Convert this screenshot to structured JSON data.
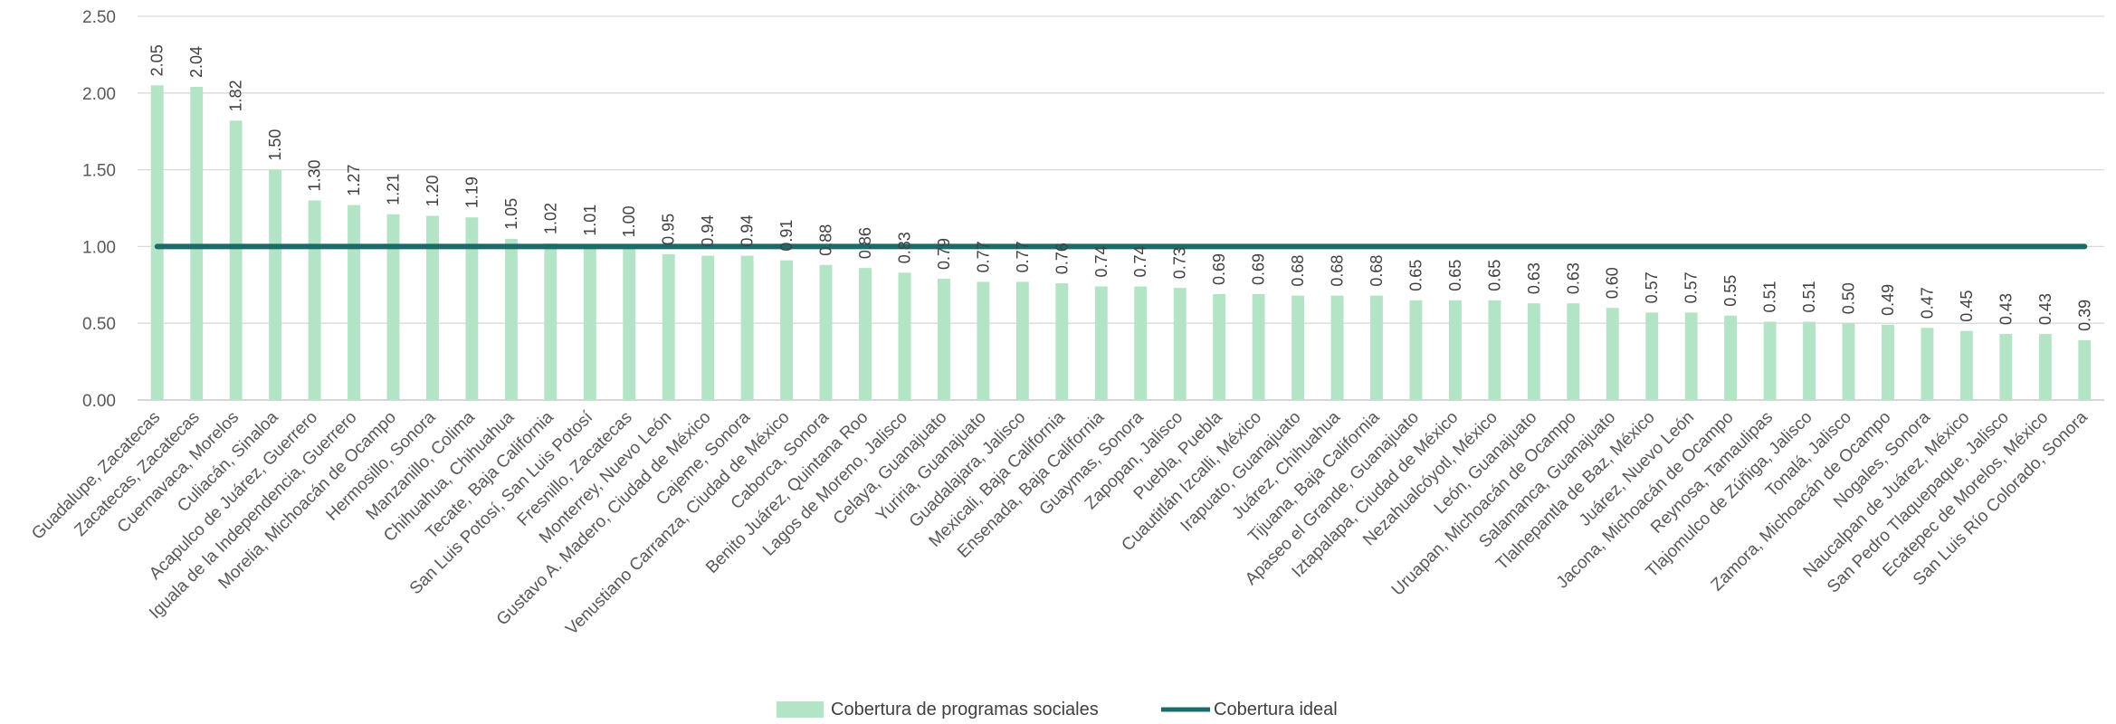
{
  "chart_data": {
    "type": "bar",
    "title": "",
    "xlabel": "",
    "ylabel": "",
    "ylim": [
      0,
      2.5
    ],
    "yticks": [
      "0.00",
      "0.50",
      "1.00",
      "1.50",
      "2.00",
      "2.50"
    ],
    "grid": true,
    "legend_position": "bottom",
    "categories": [
      "Guadalupe, Zacatecas",
      "Zacatecas, Zacatecas",
      "Cuernavaca, Morelos",
      "Culiacán, Sinaloa",
      "Acapulco de Juárez, Guerrero",
      "Iguala de la Independencia, Guerrero",
      "Morelia, Michoacán de Ocampo",
      "Hermosillo, Sonora",
      "Manzanillo, Colima",
      "Chihuahua, Chihuahua",
      "Tecate, Baja California",
      "San Luis Potosí, San Luis Potosí",
      "Fresnillo, Zacatecas",
      "Monterrey, Nuevo León",
      "Gustavo A. Madero, Ciudad de México",
      "Cajeme, Sonora",
      "Venustiano Carranza, Ciudad de México",
      "Caborca, Sonora",
      "Benito Juárez, Quintana Roo",
      "Lagos de Moreno, Jalisco",
      "Celaya, Guanajuato",
      "Yuriria, Guanajuato",
      "Guadalajara, Jalisco",
      "Mexicali, Baja California",
      "Ensenada, Baja California",
      "Guaymas, Sonora",
      "Zapopan, Jalisco",
      "Puebla, Puebla",
      "Cuautitlán Izcalli, México",
      "Irapuato, Guanajuato",
      "Juárez, Chihuahua",
      "Tijuana, Baja California",
      "Apaseo el Grande, Guanajuato",
      "Iztapalapa, Ciudad de México",
      "Nezahualcóyotl, México",
      "León, Guanajuato",
      "Uruapan, Michoacán de Ocampo",
      "Salamanca, Guanajuato",
      "Tlalnepantla de Baz, México",
      "Juárez, Nuevo León",
      "Jacona, Michoacán de Ocampo",
      "Reynosa, Tamaulipas",
      "Tlajomulco de Zúñiga, Jalisco",
      "Tonalá, Jalisco",
      "Zamora, Michoacán de Ocampo",
      "Nogales, Sonora",
      "Naucalpan de Juárez, México",
      "San Pedro Tlaquepaque, Jalisco",
      "Ecatepec de Morelos, México",
      "San Luis Río Colorado, Sonora"
    ],
    "series": [
      {
        "name": "Cobertura de programas sociales",
        "type": "bar",
        "color": "#b4e4c6",
        "values": [
          2.05,
          2.04,
          1.82,
          1.5,
          1.3,
          1.27,
          1.21,
          1.2,
          1.19,
          1.05,
          1.02,
          1.01,
          1.0,
          0.95,
          0.94,
          0.94,
          0.91,
          0.88,
          0.86,
          0.83,
          0.79,
          0.77,
          0.77,
          0.76,
          0.74,
          0.74,
          0.73,
          0.69,
          0.69,
          0.68,
          0.68,
          0.68,
          0.65,
          0.65,
          0.65,
          0.63,
          0.63,
          0.6,
          0.57,
          0.57,
          0.55,
          0.51,
          0.51,
          0.5,
          0.49,
          0.47,
          0.45,
          0.43,
          0.43,
          0.39
        ],
        "labels": [
          "2.05",
          "2.04",
          "1.82",
          "1.50",
          "1.30",
          "1.27",
          "1.21",
          "1.20",
          "1.19",
          "1.05",
          "1.02",
          "1.01",
          "1.00",
          "0.95",
          "0.94",
          "0.94",
          "0.91",
          "0.88",
          "0.86",
          "0.83",
          "0.79",
          "0.77",
          "0.77",
          "0.76",
          "0.74",
          "0.74",
          "0.73",
          "0.69",
          "0.69",
          "0.68",
          "0.68",
          "0.68",
          "0.65",
          "0.65",
          "0.65",
          "0.63",
          "0.63",
          "0.60",
          "0.57",
          "0.57",
          "0.55",
          "0.51",
          "0.51",
          "0.50",
          "0.49",
          "0.47",
          "0.45",
          "0.43",
          "0.43",
          "0.39"
        ]
      },
      {
        "name": "Cobertura ideal",
        "type": "line",
        "color": "#1b6b6a",
        "value": 1.0
      }
    ]
  }
}
